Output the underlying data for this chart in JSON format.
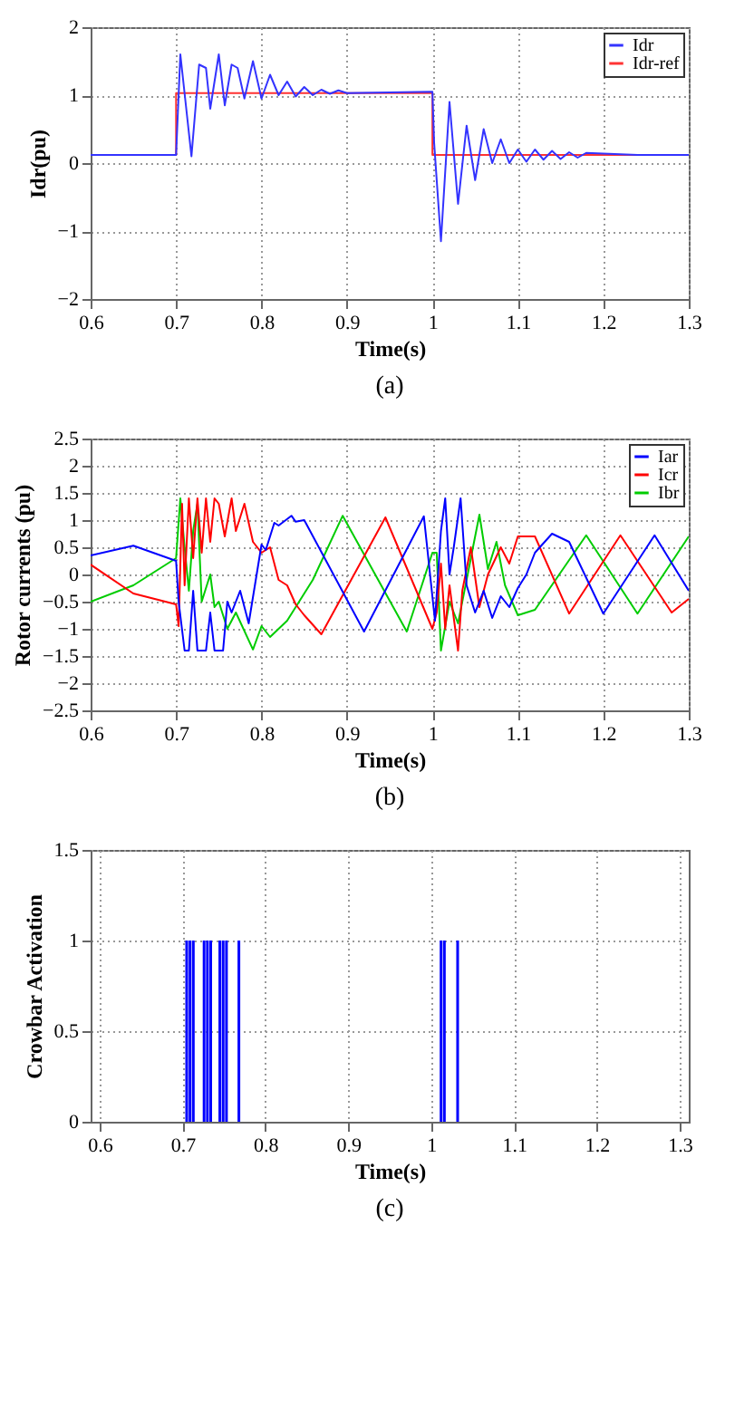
{
  "chart_data": [
    {
      "type": "line",
      "title": "(a)",
      "xlabel": "Time(s)",
      "ylabel": "Idr(pu)",
      "xlim": [
        0.6,
        1.3
      ],
      "xticks": [
        0.6,
        0.7,
        0.8,
        0.9,
        1,
        1.1,
        1.2,
        1.3
      ],
      "ylim": [
        -2,
        2
      ],
      "yticks": [
        -2,
        -1,
        0,
        1,
        2
      ],
      "grid": true,
      "legend": "top right",
      "series": [
        {
          "name": "Idr",
          "color": "#3333ff",
          "x": [
            0.6,
            0.65,
            0.7,
            0.705,
            0.718,
            0.727,
            0.735,
            0.74,
            0.75,
            0.757,
            0.765,
            0.772,
            0.78,
            0.79,
            0.8,
            0.81,
            0.82,
            0.83,
            0.84,
            0.85,
            0.86,
            0.87,
            0.88,
            0.89,
            0.9,
            0.95,
            1.0,
            1.002,
            1.01,
            1.02,
            1.03,
            1.04,
            1.05,
            1.06,
            1.07,
            1.08,
            1.09,
            1.1,
            1.11,
            1.12,
            1.13,
            1.14,
            1.15,
            1.16,
            1.17,
            1.18,
            1.24,
            1.3
          ],
          "values": [
            0.12,
            0.12,
            0.12,
            1.6,
            0.1,
            1.45,
            1.4,
            0.8,
            1.6,
            0.85,
            1.45,
            1.4,
            0.95,
            1.5,
            0.95,
            1.3,
            1.0,
            1.2,
            0.98,
            1.12,
            1.0,
            1.08,
            1.02,
            1.07,
            1.03,
            1.04,
            1.05,
            0.3,
            -1.15,
            0.9,
            -0.6,
            0.55,
            -0.25,
            0.5,
            0.0,
            0.35,
            0.0,
            0.2,
            0.02,
            0.2,
            0.05,
            0.18,
            0.06,
            0.16,
            0.08,
            0.15,
            0.12,
            0.12
          ]
        },
        {
          "name": "Idr-ref",
          "color": "#ff3333",
          "x": [
            0.6,
            0.7,
            0.7,
            1.0,
            1.0,
            1.3
          ],
          "values": [
            0.12,
            0.12,
            1.03,
            1.03,
            0.12,
            0.12
          ]
        }
      ]
    },
    {
      "type": "line",
      "title": "(b)",
      "xlabel": "Time(s)",
      "ylabel": "Rotor currents (pu)",
      "xlim": [
        0.6,
        1.3
      ],
      "xticks": [
        0.6,
        0.7,
        0.8,
        0.9,
        1,
        1.1,
        1.2,
        1.3
      ],
      "ylim": [
        -2.5,
        2.5
      ],
      "yticks": [
        -2.5,
        -2,
        -1.5,
        -1,
        -0.5,
        0,
        0.5,
        1,
        1.5,
        2,
        2.5
      ],
      "grid": true,
      "legend": "top right",
      "series": [
        {
          "name": "Iar",
          "color": "#0000ff",
          "x": [
            0.6,
            0.65,
            0.7,
            0.703,
            0.71,
            0.715,
            0.72,
            0.725,
            0.735,
            0.74,
            0.745,
            0.755,
            0.76,
            0.765,
            0.775,
            0.785,
            0.8,
            0.805,
            0.815,
            0.82,
            0.835,
            0.84,
            0.85,
            0.92,
            0.99,
            1.003,
            1.01,
            1.015,
            1.02,
            1.025,
            1.033,
            1.04,
            1.05,
            1.06,
            1.07,
            1.08,
            1.09,
            1.1,
            1.11,
            1.12,
            1.14,
            1.16,
            1.2,
            1.26,
            1.3
          ],
          "values": [
            0.35,
            0.53,
            0.25,
            -0.5,
            -1.4,
            -1.4,
            -0.3,
            -1.4,
            -1.4,
            -0.7,
            -1.4,
            -1.4,
            -0.5,
            -0.7,
            -0.3,
            -0.9,
            0.55,
            0.45,
            0.95,
            0.9,
            1.08,
            0.97,
            1.0,
            -1.05,
            1.07,
            -0.85,
            0.8,
            1.4,
            0.0,
            0.5,
            1.4,
            -0.2,
            -0.7,
            -0.3,
            -0.8,
            -0.4,
            -0.6,
            -0.25,
            0.0,
            0.4,
            0.75,
            0.6,
            -0.72,
            0.72,
            -0.3
          ]
        },
        {
          "name": "Icr",
          "color": "#ff0000",
          "x": [
            0.6,
            0.65,
            0.7,
            0.703,
            0.707,
            0.71,
            0.715,
            0.72,
            0.725,
            0.73,
            0.735,
            0.74,
            0.745,
            0.75,
            0.757,
            0.765,
            0.77,
            0.78,
            0.79,
            0.8,
            0.81,
            0.82,
            0.83,
            0.84,
            0.85,
            0.87,
            0.945,
            1.0,
            1.005,
            1.01,
            1.015,
            1.02,
            1.03,
            1.035,
            1.045,
            1.055,
            1.065,
            1.08,
            1.09,
            1.1,
            1.12,
            1.16,
            1.22,
            1.28,
            1.3
          ],
          "values": [
            0.18,
            -0.35,
            -0.55,
            -0.95,
            1.3,
            -0.2,
            1.4,
            0.3,
            1.4,
            0.4,
            1.4,
            0.6,
            1.4,
            1.3,
            0.7,
            1.4,
            0.8,
            1.3,
            0.6,
            0.4,
            0.5,
            -0.1,
            -0.2,
            -0.55,
            -0.75,
            -1.1,
            1.05,
            -1.0,
            -0.7,
            0.2,
            -1.0,
            -0.2,
            -1.4,
            -0.3,
            0.5,
            -0.6,
            0.0,
            0.5,
            0.2,
            0.7,
            0.7,
            -0.72,
            0.72,
            -0.7,
            -0.45
          ]
        },
        {
          "name": "Ibr",
          "color": "#00cc00",
          "x": [
            0.6,
            0.65,
            0.7,
            0.705,
            0.71,
            0.715,
            0.72,
            0.725,
            0.73,
            0.74,
            0.745,
            0.75,
            0.76,
            0.77,
            0.79,
            0.8,
            0.81,
            0.83,
            0.86,
            0.895,
            0.97,
            1.0,
            1.005,
            1.01,
            1.02,
            1.03,
            1.045,
            1.055,
            1.065,
            1.075,
            1.085,
            1.1,
            1.12,
            1.18,
            1.24,
            1.3
          ],
          "values": [
            -0.5,
            -0.2,
            0.3,
            1.4,
            0.5,
            -0.3,
            0.8,
            1.3,
            -0.5,
            0.0,
            -0.6,
            -0.5,
            -1.0,
            -0.7,
            -1.38,
            -0.95,
            -1.15,
            -0.85,
            -0.1,
            1.08,
            -1.05,
            0.4,
            0.4,
            -1.4,
            -0.5,
            -0.9,
            0.3,
            1.1,
            0.1,
            0.6,
            -0.2,
            -0.75,
            -0.65,
            0.72,
            -0.72,
            0.7
          ]
        }
      ]
    },
    {
      "type": "bar",
      "title": "(c)",
      "xlabel": "Time(s)",
      "ylabel": "Crowbar Activation",
      "xlim": [
        0.6,
        1.3
      ],
      "xticks": [
        0.6,
        0.7,
        0.8,
        0.9,
        1,
        1.1,
        1.2,
        1.3
      ],
      "ylim": [
        0,
        1.5
      ],
      "yticks": [
        0,
        0.5,
        1,
        1.5
      ],
      "grid": true,
      "x": [
        0.705,
        0.709,
        0.713,
        0.726,
        0.73,
        0.734,
        0.745,
        0.749,
        0.753,
        0.768,
        1.012,
        1.016,
        1.032
      ],
      "series": [
        {
          "color": "#0000ff",
          "values": [
            1,
            1,
            1,
            1,
            1,
            1,
            1,
            1,
            1,
            1,
            1,
            1,
            1
          ]
        }
      ]
    }
  ]
}
